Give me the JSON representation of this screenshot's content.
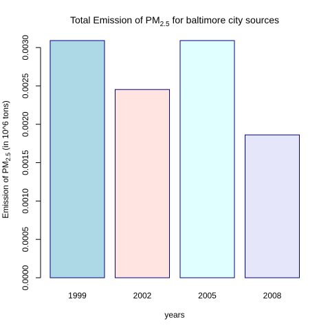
{
  "chart_data": {
    "type": "bar",
    "title": {
      "prefix": "Total Emission of PM",
      "subscript": "2.5",
      "suffix": " for baltimore city sources"
    },
    "xlabel": "years",
    "ylabel": {
      "prefix": "Emission of PM",
      "subscript": "2.5",
      "suffix": " (in 10^6 tons)"
    },
    "categories": [
      "1999",
      "2002",
      "2005",
      "2008"
    ],
    "values": [
      0.003274,
      0.002453,
      0.003091,
      0.001862
    ],
    "ylim": [
      0,
      0.0031
    ],
    "yticks": [
      0.0,
      0.0005,
      0.001,
      0.0015,
      0.002,
      0.0025,
      0.003
    ],
    "ytick_labels": [
      "0.0000",
      "0.0005",
      "0.0010",
      "0.0015",
      "0.0020",
      "0.0025",
      "0.0030"
    ],
    "colors": [
      "#add8e6",
      "#ffe4e1",
      "#e0ffff",
      "#e6e6fa"
    ],
    "border_color": "#00008b",
    "grid": false,
    "legend": "none"
  }
}
